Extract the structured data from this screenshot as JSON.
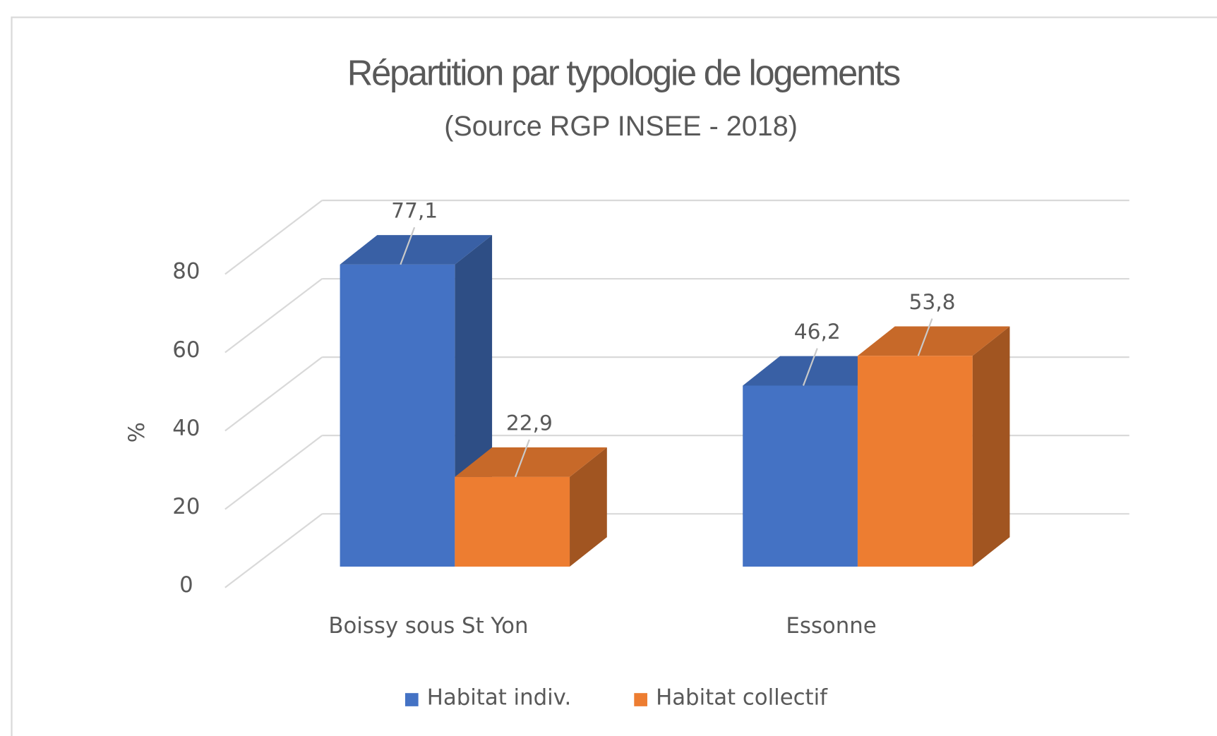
{
  "chart_data": {
    "type": "bar3d",
    "title": "Répartition par typologie de logements",
    "subtitle": "(Source RGP INSEE - 2018)",
    "y_label": "%",
    "categories": [
      "Boissy  sous St Yon",
      "Essonne"
    ],
    "series": [
      {
        "name": "Habitat indiv.",
        "color": "#4472c4",
        "values": [
          77.1,
          46.2
        ],
        "value_labels": [
          "77,1",
          "46,2"
        ]
      },
      {
        "name": "Habitat collectif",
        "color": "#ed7d31",
        "values": [
          22.9,
          53.8
        ],
        "value_labels": [
          "22,9",
          "53,8"
        ]
      }
    ],
    "ylim": [
      0,
      80
    ],
    "yticks": [
      0,
      20,
      40,
      60,
      80
    ],
    "grid": true
  }
}
